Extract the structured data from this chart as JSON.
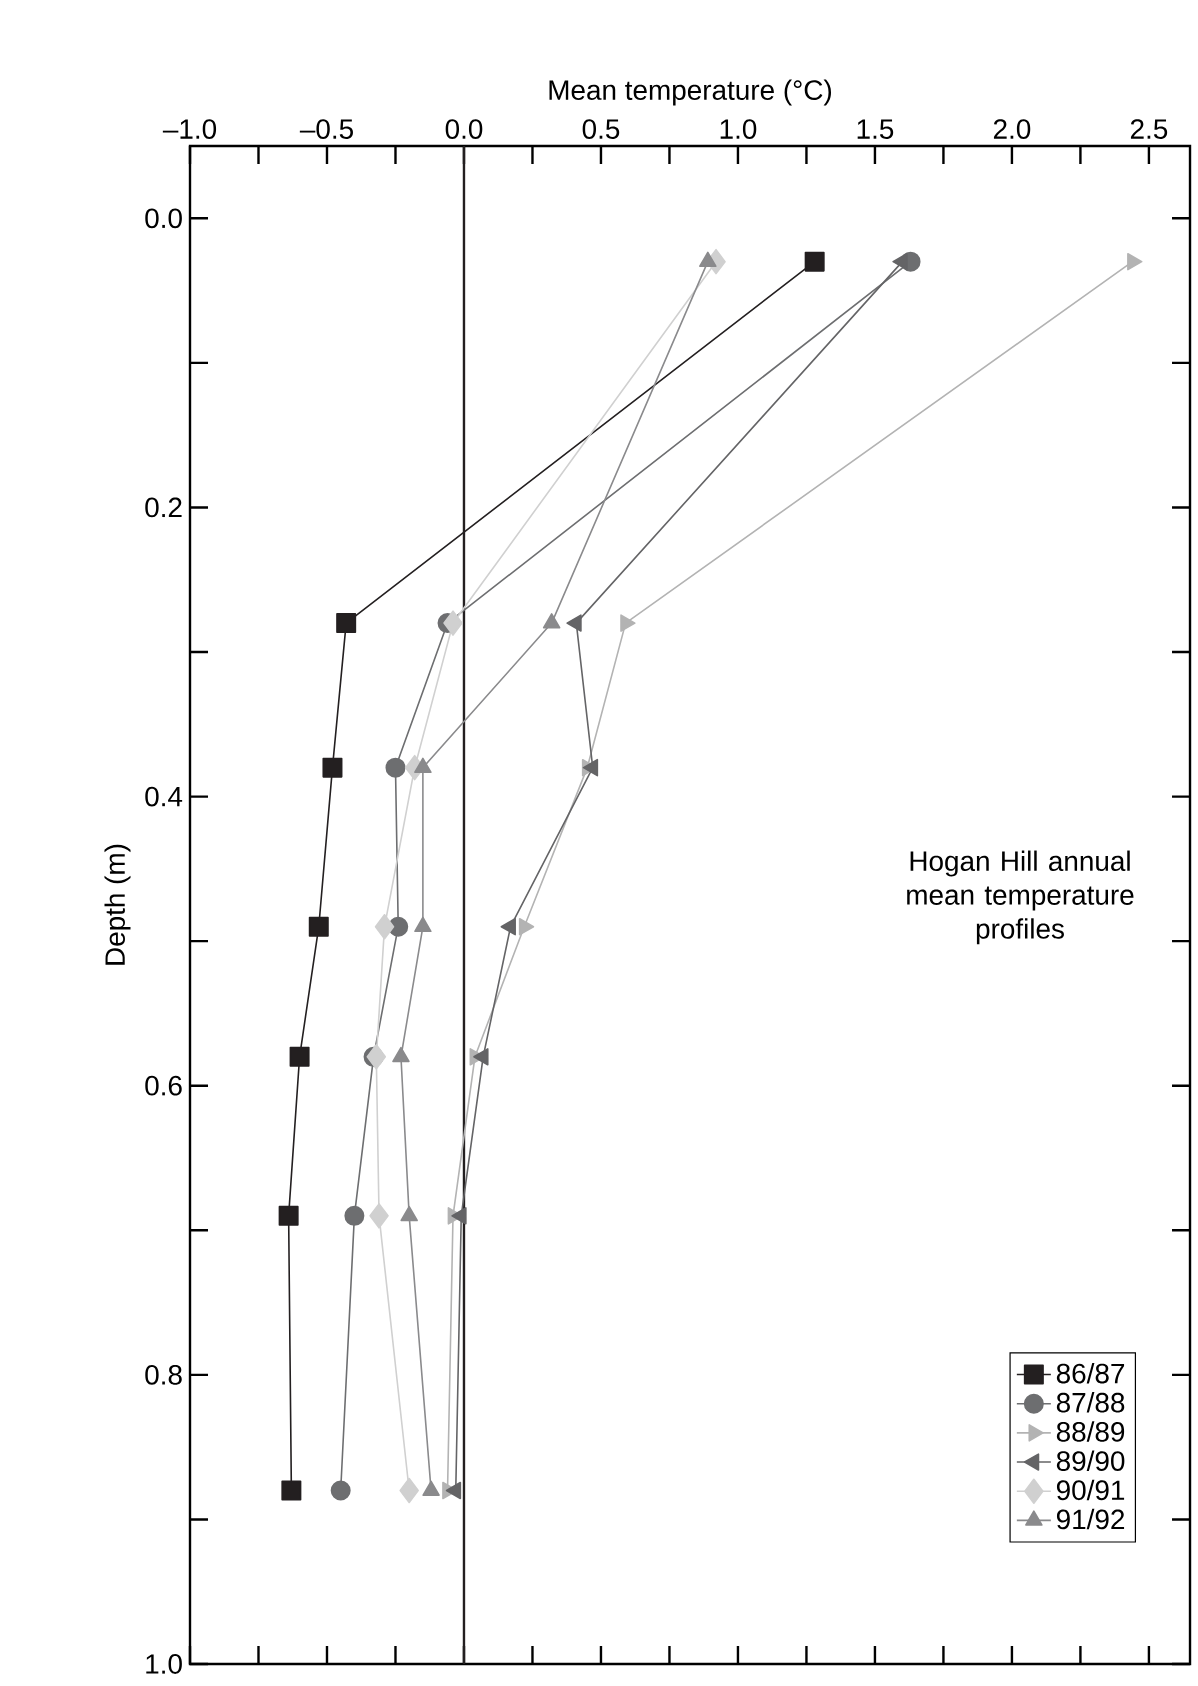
{
  "chart_data": {
    "type": "line",
    "xlabel": "Mean temperature (°C)",
    "ylabel": "Depth (m)",
    "annotations": [
      "Hogan Hill annual mean temperature profiles"
    ],
    "series": [
      {
        "name": "86/87",
        "color": "#231f20",
        "marker": "square",
        "x": [
          1.28,
          -0.43,
          -0.48,
          -0.53,
          -0.6,
          -0.64,
          -0.63
        ],
        "values": [
          0.03,
          0.28,
          0.38,
          0.49,
          0.58,
          0.69,
          0.88
        ]
      },
      {
        "name": "87/88",
        "color": "#6d6e70",
        "marker": "circle",
        "x": [
          1.63,
          -0.06,
          -0.25,
          -0.24,
          -0.33,
          -0.4,
          -0.45
        ],
        "values": [
          0.03,
          0.28,
          0.38,
          0.49,
          0.58,
          0.69,
          0.88
        ]
      },
      {
        "name": "88/89",
        "color": "#b3b3b3",
        "marker": "triangle-right",
        "x": [
          2.44,
          0.59,
          0.45,
          0.22,
          0.04,
          -0.04,
          -0.06
        ],
        "values": [
          0.03,
          0.28,
          0.38,
          0.49,
          0.58,
          0.69,
          0.88
        ]
      },
      {
        "name": "89/90",
        "color": "#646466",
        "marker": "triangle-left",
        "x": [
          1.6,
          0.41,
          0.47,
          0.17,
          0.07,
          -0.01,
          -0.03
        ],
        "values": [
          0.03,
          0.28,
          0.38,
          0.49,
          0.58,
          0.69,
          0.88
        ]
      },
      {
        "name": "90/91",
        "color": "#d0d0d0",
        "marker": "diamond",
        "x": [
          0.92,
          -0.04,
          -0.18,
          -0.29,
          -0.32,
          -0.31,
          -0.2
        ],
        "values": [
          0.03,
          0.28,
          0.38,
          0.49,
          0.58,
          0.69,
          0.88
        ]
      },
      {
        "name": "91/92",
        "color": "#8a8a8c",
        "marker": "triangle",
        "x": [
          0.89,
          0.32,
          -0.15,
          -0.15,
          -0.23,
          -0.2,
          -0.12
        ],
        "values": [
          0.03,
          0.28,
          0.38,
          0.49,
          0.58,
          0.69,
          0.88
        ]
      }
    ],
    "xlim": [
      -1.0,
      2.65
    ],
    "ylim": [
      1.0,
      -0.05
    ],
    "xticks": [
      {
        "value": -1.0,
        "label": "–1.0"
      },
      {
        "value": -0.75,
        "label": null
      },
      {
        "value": -0.5,
        "label": "–0.5"
      },
      {
        "value": -0.25,
        "label": null
      },
      {
        "value": 0.0,
        "label": "0.0"
      },
      {
        "value": 0.25,
        "label": null
      },
      {
        "value": 0.5,
        "label": "0.5"
      },
      {
        "value": 0.75,
        "label": null
      },
      {
        "value": 1.0,
        "label": "1.0"
      },
      {
        "value": 1.25,
        "label": null
      },
      {
        "value": 1.5,
        "label": "1.5"
      },
      {
        "value": 1.75,
        "label": null
      },
      {
        "value": 2.0,
        "label": "2.0"
      },
      {
        "value": 2.25,
        "label": null
      },
      {
        "value": 2.5,
        "label": "2.5"
      }
    ],
    "yticks": [
      {
        "value": 0.0,
        "label": "0.0"
      },
      {
        "value": 0.1,
        "label": null
      },
      {
        "value": 0.2,
        "label": "0.2"
      },
      {
        "value": 0.3,
        "label": null
      },
      {
        "value": 0.4,
        "label": "0.4"
      },
      {
        "value": 0.5,
        "label": null
      },
      {
        "value": 0.6,
        "label": "0.6"
      },
      {
        "value": 0.7,
        "label": null
      },
      {
        "value": 0.8,
        "label": "0.8"
      },
      {
        "value": 0.9,
        "label": null
      },
      {
        "value": 1.0,
        "label": "1.0"
      }
    ],
    "ref_lines": [
      {
        "axis": "x",
        "value": 0.0,
        "color": "#231f20"
      }
    ],
    "legend": "bottom right",
    "grid": false,
    "line_style": "solid"
  }
}
